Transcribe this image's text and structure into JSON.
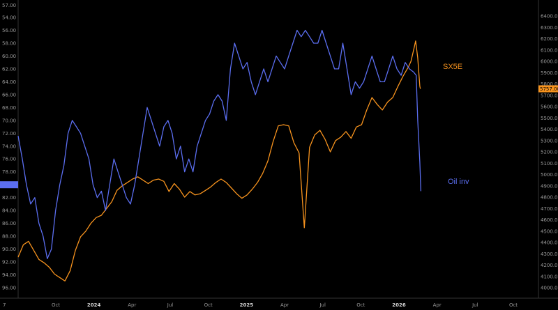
{
  "chart_data": {
    "type": "line",
    "x_ticks": [
      "Oct",
      "2024",
      "Apr",
      "Jul",
      "Oct",
      "2025",
      "Apr",
      "Jul",
      "Oct",
      "2026",
      "Apr",
      "Jul",
      "Oct"
    ],
    "x_ticks_bold": [
      "2024",
      "2025",
      "2026"
    ],
    "corner_label": "7",
    "left_axis": {
      "inverted": true,
      "range": [
        96,
        54
      ],
      "ticks": [
        "54.00",
        "56.00",
        "58.00",
        "60.00",
        "62.00",
        "64.00",
        "66.00",
        "68.00",
        "70.00",
        "72.00",
        "74.00",
        "76.00",
        "78.00",
        "80.00",
        "82.00",
        "84.00",
        "86.00",
        "88.00",
        "90.00",
        "92.00",
        "94.00",
        "96.00"
      ],
      "top_partial_label": "57.00"
    },
    "right_axis": {
      "range": [
        4000,
        6400
      ],
      "ticks": [
        "4000.00",
        "4100.00",
        "4200.00",
        "4300.00",
        "4400.00",
        "4500.00",
        "4600.00",
        "4700.00",
        "4800.00",
        "4900.00",
        "5000.00",
        "5100.00",
        "5200.00",
        "5300.00",
        "5400.00",
        "5500.00",
        "5600.00",
        "5700.00",
        "5800.00",
        "5900.00",
        "6000.00",
        "6100.00",
        "6200.00",
        "6300.00",
        "6400.00"
      ]
    },
    "series": [
      {
        "name": "SX5E",
        "color": "#f7931e",
        "axis": "right",
        "last_value_label": "5757.00",
        "last_value": 5757,
        "points": [
          [
            0.0,
            4270
          ],
          [
            0.01,
            4380
          ],
          [
            0.02,
            4410
          ],
          [
            0.03,
            4330
          ],
          [
            0.04,
            4250
          ],
          [
            0.05,
            4220
          ],
          [
            0.06,
            4180
          ],
          [
            0.07,
            4120
          ],
          [
            0.08,
            4090
          ],
          [
            0.09,
            4060
          ],
          [
            0.1,
            4150
          ],
          [
            0.11,
            4330
          ],
          [
            0.12,
            4450
          ],
          [
            0.13,
            4500
          ],
          [
            0.14,
            4570
          ],
          [
            0.15,
            4620
          ],
          [
            0.16,
            4640
          ],
          [
            0.17,
            4700
          ],
          [
            0.18,
            4760
          ],
          [
            0.19,
            4860
          ],
          [
            0.2,
            4900
          ],
          [
            0.21,
            4930
          ],
          [
            0.22,
            4960
          ],
          [
            0.23,
            4980
          ],
          [
            0.24,
            4950
          ],
          [
            0.25,
            4920
          ],
          [
            0.26,
            4950
          ],
          [
            0.27,
            4960
          ],
          [
            0.28,
            4940
          ],
          [
            0.29,
            4850
          ],
          [
            0.3,
            4920
          ],
          [
            0.31,
            4870
          ],
          [
            0.32,
            4800
          ],
          [
            0.33,
            4850
          ],
          [
            0.34,
            4820
          ],
          [
            0.35,
            4830
          ],
          [
            0.36,
            4860
          ],
          [
            0.37,
            4890
          ],
          [
            0.38,
            4930
          ],
          [
            0.39,
            4960
          ],
          [
            0.4,
            4930
          ],
          [
            0.41,
            4880
          ],
          [
            0.42,
            4830
          ],
          [
            0.43,
            4790
          ],
          [
            0.44,
            4820
          ],
          [
            0.45,
            4870
          ],
          [
            0.46,
            4930
          ],
          [
            0.47,
            5010
          ],
          [
            0.48,
            5120
          ],
          [
            0.49,
            5290
          ],
          [
            0.5,
            5430
          ],
          [
            0.51,
            5440
          ],
          [
            0.52,
            5430
          ],
          [
            0.53,
            5280
          ],
          [
            0.54,
            5190
          ],
          [
            0.55,
            4530
          ],
          [
            0.56,
            5240
          ],
          [
            0.57,
            5350
          ],
          [
            0.58,
            5390
          ],
          [
            0.59,
            5310
          ],
          [
            0.6,
            5200
          ],
          [
            0.61,
            5300
          ],
          [
            0.62,
            5330
          ],
          [
            0.63,
            5380
          ],
          [
            0.64,
            5320
          ],
          [
            0.65,
            5420
          ],
          [
            0.66,
            5440
          ],
          [
            0.67,
            5570
          ],
          [
            0.68,
            5680
          ],
          [
            0.69,
            5620
          ],
          [
            0.7,
            5570
          ],
          [
            0.71,
            5640
          ],
          [
            0.72,
            5680
          ],
          [
            0.73,
            5780
          ],
          [
            0.74,
            5870
          ],
          [
            0.75,
            5950
          ],
          [
            0.755,
            6000
          ],
          [
            0.76,
            6100
          ],
          [
            0.764,
            6180
          ],
          [
            0.768,
            6030
          ],
          [
            0.772,
            5780
          ],
          [
            0.773,
            5757
          ]
        ]
      },
      {
        "name": "Oil inv",
        "color": "#5b6ef0",
        "axis": "left",
        "points": [
          [
            0.0,
            72.4
          ],
          [
            0.008,
            76.0
          ],
          [
            0.016,
            80.0
          ],
          [
            0.024,
            83.0
          ],
          [
            0.032,
            82.0
          ],
          [
            0.04,
            86.0
          ],
          [
            0.048,
            88.0
          ],
          [
            0.056,
            91.5
          ],
          [
            0.064,
            90.0
          ],
          [
            0.072,
            84.0
          ],
          [
            0.08,
            80.0
          ],
          [
            0.088,
            77.0
          ],
          [
            0.096,
            72.0
          ],
          [
            0.104,
            70.0
          ],
          [
            0.112,
            71.0
          ],
          [
            0.12,
            72.0
          ],
          [
            0.128,
            74.0
          ],
          [
            0.136,
            76.0
          ],
          [
            0.144,
            80.0
          ],
          [
            0.152,
            82.0
          ],
          [
            0.16,
            81.0
          ],
          [
            0.168,
            84.0
          ],
          [
            0.176,
            80.0
          ],
          [
            0.184,
            76.0
          ],
          [
            0.192,
            78.0
          ],
          [
            0.2,
            80.0
          ],
          [
            0.208,
            82.0
          ],
          [
            0.216,
            83.0
          ],
          [
            0.224,
            80.0
          ],
          [
            0.232,
            76.0
          ],
          [
            0.24,
            72.0
          ],
          [
            0.248,
            68.0
          ],
          [
            0.256,
            70.0
          ],
          [
            0.264,
            72.0
          ],
          [
            0.272,
            74.0
          ],
          [
            0.28,
            71.0
          ],
          [
            0.288,
            70.0
          ],
          [
            0.296,
            72.0
          ],
          [
            0.304,
            76.0
          ],
          [
            0.312,
            74.0
          ],
          [
            0.32,
            78.0
          ],
          [
            0.328,
            76.0
          ],
          [
            0.336,
            78.0
          ],
          [
            0.344,
            74.0
          ],
          [
            0.352,
            72.0
          ],
          [
            0.36,
            70.0
          ],
          [
            0.368,
            69.0
          ],
          [
            0.376,
            67.0
          ],
          [
            0.384,
            66.0
          ],
          [
            0.392,
            67.0
          ],
          [
            0.4,
            70.0
          ],
          [
            0.408,
            62.0
          ],
          [
            0.416,
            58.0
          ],
          [
            0.424,
            60.0
          ],
          [
            0.432,
            62.0
          ],
          [
            0.44,
            61.0
          ],
          [
            0.448,
            64.0
          ],
          [
            0.456,
            66.0
          ],
          [
            0.464,
            64.0
          ],
          [
            0.472,
            62.0
          ],
          [
            0.48,
            64.0
          ],
          [
            0.488,
            62.0
          ],
          [
            0.496,
            60.0
          ],
          [
            0.504,
            61.0
          ],
          [
            0.512,
            62.0
          ],
          [
            0.52,
            60.0
          ],
          [
            0.528,
            58.0
          ],
          [
            0.536,
            56.0
          ],
          [
            0.544,
            57.0
          ],
          [
            0.552,
            56.0
          ],
          [
            0.56,
            57.0
          ],
          [
            0.568,
            58.0
          ],
          [
            0.576,
            58.0
          ],
          [
            0.584,
            56.0
          ],
          [
            0.592,
            58.0
          ],
          [
            0.6,
            60.0
          ],
          [
            0.608,
            62.0
          ],
          [
            0.616,
            62.0
          ],
          [
            0.624,
            58.0
          ],
          [
            0.632,
            62.0
          ],
          [
            0.64,
            66.0
          ],
          [
            0.648,
            64.0
          ],
          [
            0.656,
            65.0
          ],
          [
            0.664,
            64.0
          ],
          [
            0.672,
            62.0
          ],
          [
            0.68,
            60.0
          ],
          [
            0.688,
            62.0
          ],
          [
            0.696,
            64.0
          ],
          [
            0.704,
            64.0
          ],
          [
            0.712,
            62.0
          ],
          [
            0.72,
            60.0
          ],
          [
            0.728,
            62.0
          ],
          [
            0.736,
            63.0
          ],
          [
            0.744,
            61.0
          ],
          [
            0.752,
            62.0
          ],
          [
            0.76,
            62.5
          ],
          [
            0.765,
            63.0
          ],
          [
            0.768,
            70.0
          ],
          [
            0.772,
            76.5
          ],
          [
            0.774,
            81.0
          ]
        ]
      }
    ]
  }
}
